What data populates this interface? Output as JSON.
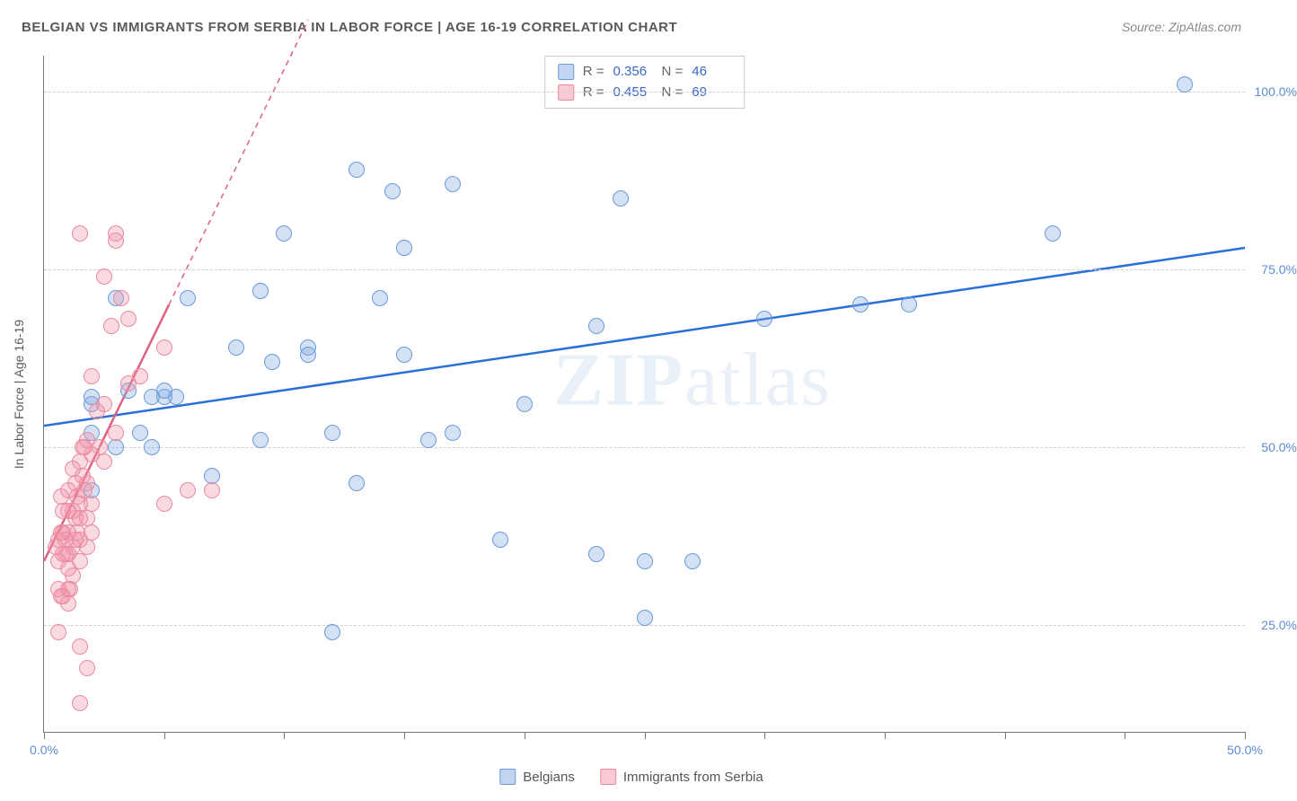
{
  "title": "BELGIAN VS IMMIGRANTS FROM SERBIA IN LABOR FORCE | AGE 16-19 CORRELATION CHART",
  "source_label": "Source: ZipAtlas.com",
  "y_axis_title": "In Labor Force | Age 16-19",
  "watermark": "ZIPatlas",
  "chart": {
    "type": "scatter",
    "xlim": [
      0,
      50
    ],
    "ylim": [
      10,
      105
    ],
    "x_ticks": [
      0,
      5,
      10,
      15,
      20,
      25,
      30,
      35,
      40,
      45,
      50
    ],
    "x_tick_labels": {
      "0": "0.0%",
      "50": "50.0%"
    },
    "y_gridlines": [
      25,
      50,
      75,
      100
    ],
    "y_tick_labels": {
      "25": "25.0%",
      "50": "50.0%",
      "75": "75.0%",
      "100": "100.0%"
    },
    "background_color": "#ffffff",
    "grid_color": "#d0d0d0",
    "axis_color": "#777777",
    "label_color": "#5b8bd4",
    "marker_radius": 9,
    "series": [
      {
        "name": "Belgians",
        "color_fill": "rgba(131,170,225,0.35)",
        "color_stroke": "#6a9bd8",
        "trend_color": "#2a6fd6",
        "trend_solid": {
          "x1": 0,
          "y1": 53,
          "x2": 50,
          "y2": 78
        },
        "r": 0.356,
        "n": 46,
        "points": [
          [
            47.5,
            101
          ],
          [
            42,
            80
          ],
          [
            36,
            70
          ],
          [
            34,
            70
          ],
          [
            30,
            68
          ],
          [
            27,
            34
          ],
          [
            25,
            26
          ],
          [
            25,
            34
          ],
          [
            24,
            85
          ],
          [
            23,
            67
          ],
          [
            23,
            35
          ],
          [
            20,
            56
          ],
          [
            19,
            37
          ],
          [
            17,
            87
          ],
          [
            17,
            52
          ],
          [
            16,
            51
          ],
          [
            15,
            78
          ],
          [
            15,
            63
          ],
          [
            14.5,
            86
          ],
          [
            14,
            71
          ],
          [
            13,
            45
          ],
          [
            13,
            89
          ],
          [
            12,
            24
          ],
          [
            12,
            52
          ],
          [
            11,
            64
          ],
          [
            11,
            63
          ],
          [
            10,
            80
          ],
          [
            9.5,
            62
          ],
          [
            9,
            51
          ],
          [
            9,
            72
          ],
          [
            8,
            64
          ],
          [
            7,
            46
          ],
          [
            6,
            71
          ],
          [
            5.5,
            57
          ],
          [
            5,
            57
          ],
          [
            5,
            58
          ],
          [
            4.5,
            50
          ],
          [
            4.5,
            57
          ],
          [
            4,
            52
          ],
          [
            3.5,
            58
          ],
          [
            3,
            71
          ],
          [
            3,
            50
          ],
          [
            2,
            52
          ],
          [
            2,
            56
          ],
          [
            2,
            57
          ],
          [
            2,
            44
          ]
        ]
      },
      {
        "name": "Immigrants from Serbia",
        "color_fill": "rgba(240,150,170,0.35)",
        "color_stroke": "#e88aa0",
        "trend_color": "#e0607f",
        "trend_solid": {
          "x1": 0,
          "y1": 34,
          "x2": 5.2,
          "y2": 70
        },
        "trend_dashed": {
          "x1": 5.2,
          "y1": 70,
          "x2": 11,
          "y2": 110
        },
        "r": 0.455,
        "n": 69,
        "points": [
          [
            7,
            44
          ],
          [
            6,
            44
          ],
          [
            5,
            64
          ],
          [
            5,
            42
          ],
          [
            4,
            60
          ],
          [
            3.5,
            68
          ],
          [
            3.5,
            59
          ],
          [
            3.2,
            71
          ],
          [
            3,
            80
          ],
          [
            3,
            79
          ],
          [
            3,
            52
          ],
          [
            2.8,
            67
          ],
          [
            2.5,
            74
          ],
          [
            2.5,
            56
          ],
          [
            2.5,
            48
          ],
          [
            2.3,
            50
          ],
          [
            2.2,
            55
          ],
          [
            2,
            60
          ],
          [
            2,
            49
          ],
          [
            2,
            42
          ],
          [
            2,
            38
          ],
          [
            1.8,
            51
          ],
          [
            1.8,
            45
          ],
          [
            1.8,
            40
          ],
          [
            1.8,
            36
          ],
          [
            1.7,
            50
          ],
          [
            1.7,
            44
          ],
          [
            1.6,
            50
          ],
          [
            1.6,
            46
          ],
          [
            1.5,
            80
          ],
          [
            1.5,
            48
          ],
          [
            1.5,
            42
          ],
          [
            1.5,
            40
          ],
          [
            1.5,
            37
          ],
          [
            1.5,
            34
          ],
          [
            1.4,
            43
          ],
          [
            1.4,
            38
          ],
          [
            1.3,
            45
          ],
          [
            1.3,
            40
          ],
          [
            1.3,
            37
          ],
          [
            1.2,
            47
          ],
          [
            1.2,
            41
          ],
          [
            1.2,
            36
          ],
          [
            1.2,
            32
          ],
          [
            1.1,
            30
          ],
          [
            1,
            44
          ],
          [
            1,
            41
          ],
          [
            1,
            38
          ],
          [
            1,
            35
          ],
          [
            1,
            33
          ],
          [
            1,
            30
          ],
          [
            0.9,
            37
          ],
          [
            0.9,
            35
          ],
          [
            0.8,
            41
          ],
          [
            0.8,
            38
          ],
          [
            0.8,
            35
          ],
          [
            0.8,
            29
          ],
          [
            0.7,
            43
          ],
          [
            0.7,
            38
          ],
          [
            0.7,
            29
          ],
          [
            0.6,
            37
          ],
          [
            0.6,
            34
          ],
          [
            0.6,
            30
          ],
          [
            0.6,
            24
          ],
          [
            0.5,
            36
          ],
          [
            1.5,
            22
          ],
          [
            1.8,
            19
          ],
          [
            1.5,
            14
          ],
          [
            1,
            28
          ]
        ]
      }
    ]
  },
  "stats_box": [
    {
      "swatch": "blue",
      "r": "0.356",
      "n": "46"
    },
    {
      "swatch": "pink",
      "r": "0.455",
      "n": "69"
    }
  ],
  "bottom_legend": [
    {
      "swatch": "blue",
      "label": "Belgians"
    },
    {
      "swatch": "pink",
      "label": "Immigrants from Serbia"
    }
  ]
}
